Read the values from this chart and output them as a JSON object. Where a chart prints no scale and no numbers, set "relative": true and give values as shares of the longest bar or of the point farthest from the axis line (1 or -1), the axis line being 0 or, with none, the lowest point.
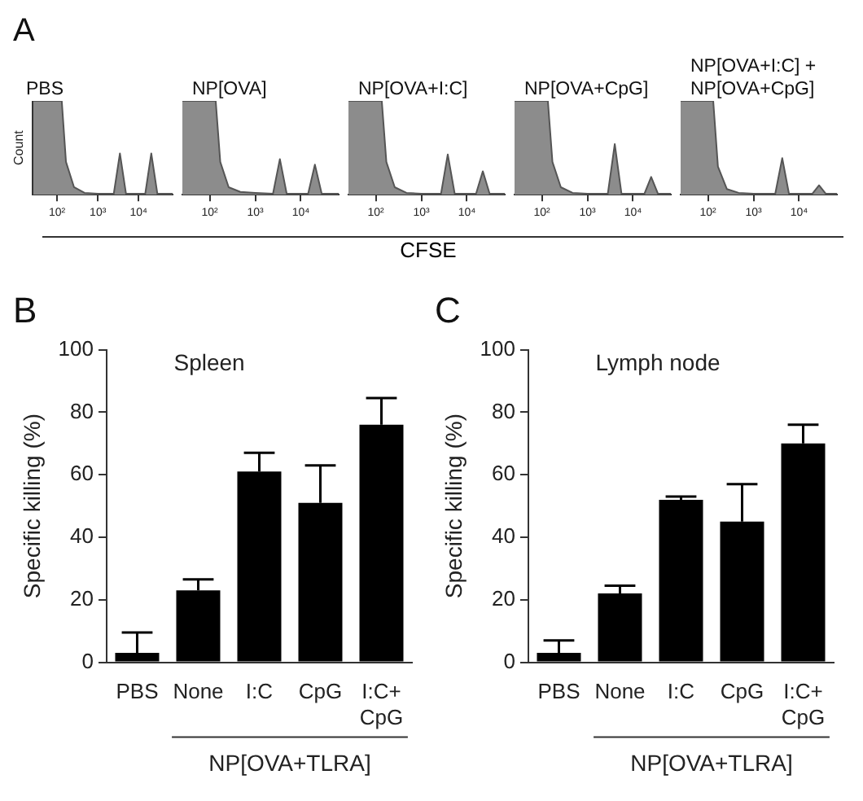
{
  "chart_data": [
    {
      "type": "area",
      "title": "PBS",
      "ylabel": "Count",
      "annotations": [
        "A"
      ],
      "relative": true,
      "log": "x",
      "color": "#8c8c8c",
      "xlim": [
        25,
        68000
      ],
      "xticks": [
        {
          "value": 100,
          "label": "10²"
        },
        {
          "value": 1000,
          "label": "10³"
        },
        {
          "value": 10000,
          "label": "10⁴"
        }
      ],
      "x": [
        25,
        130,
        165,
        260,
        470,
        1000,
        2450,
        3470,
        4900,
        7000,
        14500,
        20400,
        28800,
        50000,
        68000
      ],
      "values": [
        1,
        1,
        0.35,
        0.08,
        0.02,
        0.01,
        0.01,
        0.44,
        0.01,
        0.01,
        0.01,
        0.44,
        0.01,
        0.01,
        0.01
      ]
    },
    {
      "type": "area",
      "title": "NP[OVA]",
      "relative": true,
      "log": "x",
      "color": "#8c8c8c",
      "xlim": [
        25,
        68000
      ],
      "xticks": [
        {
          "value": 100,
          "label": "10²"
        },
        {
          "value": 1000,
          "label": "10³"
        },
        {
          "value": 10000,
          "label": "10⁴"
        }
      ],
      "x": [
        25,
        135,
        170,
        260,
        470,
        1000,
        2450,
        3470,
        4900,
        7000,
        14500,
        20400,
        28800,
        50000,
        68000
      ],
      "values": [
        1,
        1,
        0.35,
        0.08,
        0.03,
        0.02,
        0.01,
        0.38,
        0.01,
        0.01,
        0.01,
        0.32,
        0.01,
        0.01,
        0.01
      ]
    },
    {
      "type": "area",
      "title": "NP[OVA+I:C]",
      "xlabel": "CFSE",
      "relative": true,
      "log": "x",
      "color": "#8c8c8c",
      "xlim": [
        25,
        68000
      ],
      "xticks": [
        {
          "value": 100,
          "label": "10²"
        },
        {
          "value": 1000,
          "label": "10³"
        },
        {
          "value": 10000,
          "label": "10⁴"
        }
      ],
      "x": [
        25,
        135,
        170,
        260,
        470,
        1000,
        2700,
        3800,
        5400,
        8000,
        15900,
        22400,
        31600,
        50000,
        68000
      ],
      "values": [
        1,
        1,
        0.35,
        0.08,
        0.02,
        0.01,
        0.01,
        0.43,
        0.01,
        0.01,
        0.01,
        0.25,
        0.01,
        0.01,
        0.01
      ]
    },
    {
      "type": "area",
      "title": "NP[OVA+CpG]",
      "relative": true,
      "log": "x",
      "color": "#8c8c8c",
      "xlim": [
        25,
        68000
      ],
      "xticks": [
        {
          "value": 100,
          "label": "10²"
        },
        {
          "value": 1000,
          "label": "10³"
        },
        {
          "value": 10000,
          "label": "10⁴"
        }
      ],
      "x": [
        25,
        135,
        170,
        260,
        470,
        1000,
        2800,
        3980,
        5600,
        9000,
        17800,
        25100,
        35500,
        50000,
        68000
      ],
      "values": [
        1,
        1,
        0.35,
        0.08,
        0.02,
        0.01,
        0.01,
        0.54,
        0.01,
        0.01,
        0.01,
        0.19,
        0.01,
        0.01,
        0.01
      ]
    },
    {
      "type": "area",
      "title": "NP[OVA+I:C] + NP[OVA+CpG]",
      "relative": true,
      "log": "x",
      "color": "#8c8c8c",
      "xlim": [
        25,
        68000
      ],
      "xticks": [
        {
          "value": 100,
          "label": "10²"
        },
        {
          "value": 1000,
          "label": "10³"
        },
        {
          "value": 10000,
          "label": "10⁴"
        }
      ],
      "x": [
        25,
        130,
        165,
        260,
        470,
        1000,
        3000,
        4270,
        6000,
        9000,
        19500,
        27500,
        38800,
        55000,
        68000
      ],
      "values": [
        1,
        1,
        0.3,
        0.06,
        0.02,
        0.01,
        0.01,
        0.39,
        0.01,
        0.01,
        0.01,
        0.1,
        0.01,
        0.01,
        0.01
      ]
    },
    {
      "type": "bar",
      "title": "Spleen",
      "ylabel": "Specific killing (%)",
      "annotations": [
        "B",
        "NP[OVA+TLRA]"
      ],
      "categories": [
        "PBS",
        "None",
        "I:C",
        "CpG",
        "I:C+ CpG"
      ],
      "color": "#000000",
      "ylim": [
        0,
        100
      ],
      "yticks": [
        0,
        20,
        40,
        60,
        80,
        100
      ],
      "values": [
        3,
        23,
        61,
        51,
        76
      ],
      "errors": [
        [
          3,
          9.5
        ],
        [
          23,
          26.5
        ],
        [
          61,
          67
        ],
        [
          51,
          63
        ],
        [
          76,
          84.5
        ]
      ]
    },
    {
      "type": "bar",
      "title": "Lymph node",
      "ylabel": "Specific killing (%)",
      "annotations": [
        "C",
        "NP[OVA+TLRA]"
      ],
      "categories": [
        "PBS",
        "None",
        "I:C",
        "CpG",
        "I:C+ CpG"
      ],
      "color": "#000000",
      "ylim": [
        0,
        100
      ],
      "yticks": [
        0,
        20,
        40,
        60,
        80,
        100
      ],
      "values": [
        3,
        22,
        52,
        45,
        70
      ],
      "errors": [
        [
          3,
          7
        ],
        [
          22,
          24.5
        ],
        [
          52,
          53
        ],
        [
          45,
          57
        ],
        [
          70,
          76
        ]
      ]
    }
  ]
}
